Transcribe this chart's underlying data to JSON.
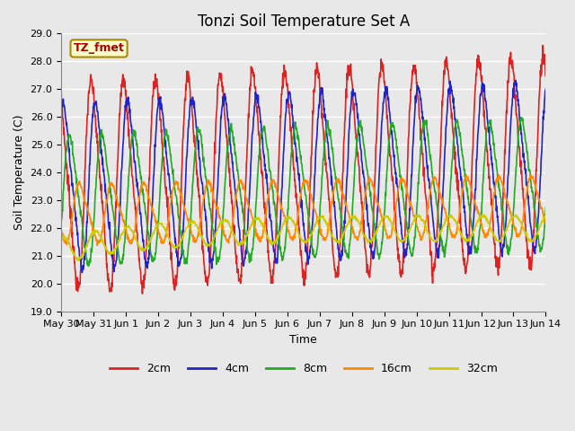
{
  "title": "Tonzi Soil Temperature Set A",
  "xlabel": "Time",
  "ylabel": "Soil Temperature (C)",
  "annotation": "TZ_fmet",
  "ylim": [
    19.0,
    29.0
  ],
  "yticks": [
    19.0,
    20.0,
    21.0,
    22.0,
    23.0,
    24.0,
    25.0,
    26.0,
    27.0,
    28.0,
    29.0
  ],
  "xtick_labels": [
    "May 30",
    "May 31",
    "Jun 1",
    "Jun 2",
    "Jun 3",
    "Jun 4",
    "Jun 5",
    "Jun 6",
    "Jun 7",
    "Jun 8",
    "Jun 9",
    "Jun 10",
    "Jun 11",
    "Jun 12",
    "Jun 13",
    "Jun 14"
  ],
  "series": {
    "2cm": {
      "color": "#dd2222",
      "linewidth": 1.2
    },
    "4cm": {
      "color": "#2222cc",
      "linewidth": 1.2
    },
    "8cm": {
      "color": "#22aa22",
      "linewidth": 1.2
    },
    "16cm": {
      "color": "#ff8800",
      "linewidth": 1.2
    },
    "32cm": {
      "color": "#cccc00",
      "linewidth": 1.2
    }
  },
  "legend_order": [
    "2cm",
    "4cm",
    "8cm",
    "16cm",
    "32cm"
  ],
  "background_color": "#e8e8e8",
  "fig_facecolor": "#e8e8e8",
  "grid_color": "#ffffff",
  "title_fontsize": 12,
  "axis_label_fontsize": 9,
  "tick_fontsize": 8,
  "days": 15,
  "base_2cm": 23.5,
  "amp_2cm": 3.5,
  "phase_2cm": -0.28,
  "base_4cm": 23.5,
  "amp_4cm": 2.8,
  "phase_4cm": -0.15,
  "base_8cm": 23.0,
  "amp_8cm": 2.2,
  "phase_8cm": 0.05,
  "base_16cm": 22.5,
  "amp_16cm": 1.0,
  "phase_16cm": 0.35,
  "base_32cm": 21.2,
  "amp_32cm": 0.45,
  "phase_32cm": 0.8
}
